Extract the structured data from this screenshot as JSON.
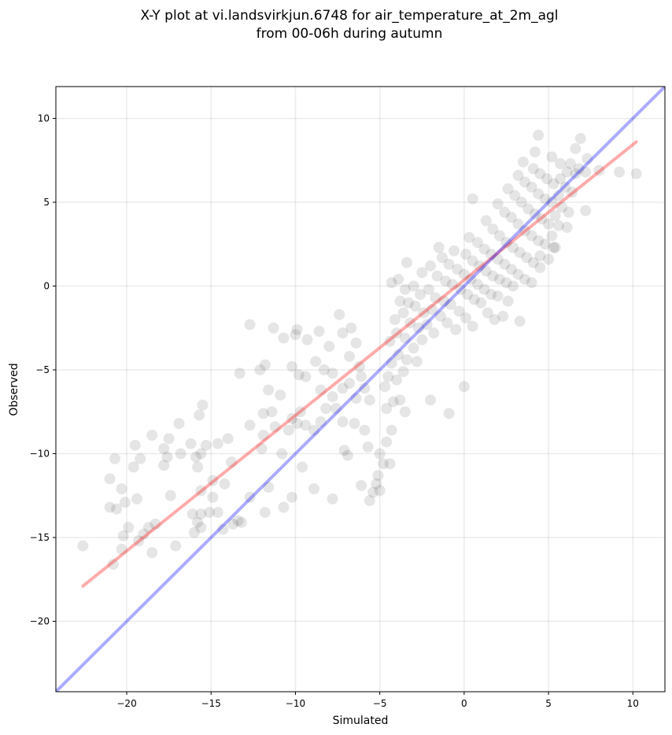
{
  "chart_data": {
    "type": "scatter",
    "title": "X-Y plot at vi.landsvirkjun.6748 for air_temperature_at_2m_agl",
    "subtitle": "from 00-06h during autumn",
    "xlabel": "Simulated",
    "ylabel": "Observed",
    "xlim": [
      -24.2,
      11.9
    ],
    "ylim": [
      -24.2,
      11.9
    ],
    "xticks": [
      -20,
      -15,
      -10,
      -5,
      0,
      5,
      10
    ],
    "yticks": [
      -20,
      -15,
      -10,
      -5,
      0,
      5,
      10
    ],
    "xtick_labels": [
      "−20",
      "−15",
      "−10",
      "−5",
      "0",
      "5",
      "10"
    ],
    "ytick_labels": [
      "−20",
      "−15",
      "−10",
      "−5",
      "0",
      "5",
      "10"
    ],
    "grid": true,
    "point_color": "#000000",
    "point_opacity": 0.1,
    "series": [
      {
        "points_note": "",
        "points": [
          [
            -22.6,
            -15.5
          ],
          [
            -21.0,
            -11.5
          ],
          [
            -20.7,
            -10.3
          ],
          [
            -20.3,
            -12.1
          ],
          [
            -21.0,
            -13.2
          ],
          [
            -20.6,
            -13.3
          ],
          [
            -20.1,
            -12.9
          ],
          [
            -19.5,
            -9.5
          ],
          [
            -19.2,
            -10.3
          ],
          [
            -19.6,
            -10.8
          ],
          [
            -19.4,
            -12.7
          ],
          [
            -20.2,
            -14.9
          ],
          [
            -19.9,
            -14.4
          ],
          [
            -19.0,
            -14.8
          ],
          [
            -18.7,
            -14.4
          ],
          [
            -18.3,
            -14.2
          ],
          [
            -18.5,
            -15.9
          ],
          [
            -20.3,
            -15.7
          ],
          [
            -20.8,
            -16.6
          ],
          [
            -19.3,
            -15.2
          ],
          [
            -18.5,
            -8.9
          ],
          [
            -17.8,
            -9.7
          ],
          [
            -17.6,
            -10.2
          ],
          [
            -17.8,
            -10.7
          ],
          [
            -17.5,
            -9.1
          ],
          [
            -16.9,
            -8.2
          ],
          [
            -16.8,
            -10.0
          ],
          [
            -17.4,
            -12.5
          ],
          [
            -17.1,
            -15.5
          ],
          [
            -16.2,
            -9.4
          ],
          [
            -15.9,
            -10.2
          ],
          [
            -15.6,
            -10.0
          ],
          [
            -15.3,
            -9.5
          ],
          [
            -15.8,
            -10.8
          ],
          [
            -15.5,
            -7.1
          ],
          [
            -15.7,
            -7.7
          ],
          [
            -14.6,
            -9.4
          ],
          [
            -14.0,
            -9.1
          ],
          [
            -13.8,
            -10.5
          ],
          [
            -14.9,
            -11.6
          ],
          [
            -14.2,
            -11.8
          ],
          [
            -15.6,
            -12.2
          ],
          [
            -14.9,
            -12.6
          ],
          [
            -16.1,
            -13.6
          ],
          [
            -15.6,
            -13.6
          ],
          [
            -15.1,
            -13.5
          ],
          [
            -14.6,
            -13.5
          ],
          [
            -15.8,
            -14.1
          ],
          [
            -15.6,
            -14.4
          ],
          [
            -16.0,
            -14.7
          ],
          [
            -13.7,
            -14.2
          ],
          [
            -13.4,
            -14.0
          ],
          [
            -14.3,
            -14.5
          ],
          [
            -12.7,
            -2.3
          ],
          [
            -13.3,
            -5.2
          ],
          [
            -12.1,
            -5.0
          ],
          [
            -11.8,
            -4.7
          ],
          [
            -11.6,
            -6.2
          ],
          [
            -11.9,
            -7.6
          ],
          [
            -11.4,
            -7.5
          ],
          [
            -12.7,
            -8.3
          ],
          [
            -11.9,
            -8.9
          ],
          [
            -11.2,
            -8.4
          ],
          [
            -12.0,
            -9.7
          ],
          [
            -10.8,
            -10.0
          ],
          [
            -12.7,
            -12.6
          ],
          [
            -11.6,
            -12.0
          ],
          [
            -11.8,
            -13.5
          ],
          [
            -13.2,
            -14.1
          ],
          [
            -11.3,
            -2.5
          ],
          [
            -10.7,
            -3.1
          ],
          [
            -10.0,
            -2.9
          ],
          [
            -9.9,
            -2.6
          ],
          [
            -10.2,
            -4.8
          ],
          [
            -9.8,
            -5.3
          ],
          [
            -9.4,
            -5.4
          ],
          [
            -10.9,
            -6.5
          ],
          [
            -10.2,
            -7.9
          ],
          [
            -9.7,
            -7.5
          ],
          [
            -9.9,
            -8.2
          ],
          [
            -10.4,
            -8.6
          ],
          [
            -9.4,
            -8.3
          ],
          [
            -8.9,
            -8.6
          ],
          [
            -9.6,
            -10.8
          ],
          [
            -10.2,
            -12.6
          ],
          [
            -10.7,
            -13.2
          ],
          [
            -8.9,
            -12.1
          ],
          [
            -7.8,
            -12.7
          ],
          [
            -9.3,
            -3.2
          ],
          [
            -8.6,
            -2.7
          ],
          [
            -8.0,
            -3.6
          ],
          [
            -8.8,
            -4.5
          ],
          [
            -8.3,
            -5.0
          ],
          [
            -7.8,
            -5.2
          ],
          [
            -8.5,
            -6.2
          ],
          [
            -7.8,
            -6.6
          ],
          [
            -7.2,
            -6.1
          ],
          [
            -8.2,
            -7.3
          ],
          [
            -7.6,
            -7.3
          ],
          [
            -8.5,
            -8.1
          ],
          [
            -7.2,
            -8.1
          ],
          [
            -7.1,
            -9.8
          ],
          [
            -6.9,
            -10.1
          ],
          [
            -7.4,
            -1.7
          ],
          [
            -7.2,
            -2.8
          ],
          [
            -6.7,
            -2.5
          ],
          [
            -6.4,
            -3.4
          ],
          [
            -6.8,
            -4.2
          ],
          [
            -6.2,
            -4.8
          ],
          [
            -6.8,
            -5.8
          ],
          [
            -6.1,
            -5.4
          ],
          [
            -5.9,
            -6.1
          ],
          [
            -6.4,
            -6.7
          ],
          [
            -5.6,
            -6.8
          ],
          [
            -6.5,
            -8.2
          ],
          [
            -5.9,
            -8.6
          ],
          [
            -5.7,
            -9.6
          ],
          [
            -6.1,
            -11.9
          ],
          [
            -5.6,
            -12.8
          ],
          [
            -5.4,
            -12.3
          ],
          [
            -5.2,
            -11.8
          ],
          [
            -5.1,
            -11.3
          ],
          [
            -5.0,
            -12.2
          ],
          [
            -4.8,
            -10.6
          ],
          [
            -5.0,
            -10.0
          ],
          [
            -4.4,
            -10.6
          ],
          [
            -4.6,
            -9.3
          ],
          [
            -4.3,
            -8.6
          ],
          [
            -4.6,
            -7.3
          ],
          [
            -3.5,
            -7.5
          ],
          [
            -3.8,
            -6.8
          ],
          [
            -4.2,
            -6.9
          ],
          [
            -2.0,
            -6.8
          ],
          [
            -0.9,
            -7.6
          ],
          [
            0.0,
            -6.0
          ],
          [
            -4.7,
            -6.0
          ],
          [
            -4.5,
            -5.4
          ],
          [
            -4.0,
            -5.6
          ],
          [
            -3.6,
            -5.1
          ],
          [
            -4.3,
            -4.6
          ],
          [
            -3.9,
            -4.1
          ],
          [
            -3.4,
            -4.4
          ],
          [
            -2.8,
            -4.5
          ],
          [
            -4.4,
            -3.3
          ],
          [
            -4.0,
            -2.8
          ],
          [
            -3.5,
            -3.1
          ],
          [
            -3.0,
            -3.7
          ],
          [
            -2.5,
            -3.2
          ],
          [
            -4.1,
            -2.0
          ],
          [
            -3.6,
            -1.6
          ],
          [
            -3.2,
            -2.2
          ],
          [
            -2.7,
            -2.5
          ],
          [
            -2.2,
            -2.3
          ],
          [
            -1.8,
            -2.8
          ],
          [
            -3.8,
            -0.9
          ],
          [
            -3.3,
            -1.0
          ],
          [
            -2.9,
            -1.2
          ],
          [
            -2.4,
            -1.6
          ],
          [
            -1.9,
            -1.4
          ],
          [
            -1.4,
            -1.8
          ],
          [
            -1.0,
            -2.2
          ],
          [
            -0.5,
            -2.6
          ],
          [
            -4.3,
            0.2
          ],
          [
            -3.9,
            0.4
          ],
          [
            -3.5,
            -0.2
          ],
          [
            -3.0,
            0.0
          ],
          [
            -2.6,
            -0.5
          ],
          [
            -2.1,
            -0.2
          ],
          [
            -1.7,
            -0.7
          ],
          [
            -1.2,
            -0.9
          ],
          [
            -0.8,
            -1.1
          ],
          [
            -0.3,
            -1.5
          ],
          [
            0.1,
            -1.9
          ],
          [
            0.5,
            -2.4
          ],
          [
            -2.5,
            0.8
          ],
          [
            -2.0,
            1.2
          ],
          [
            -1.6,
            0.6
          ],
          [
            -1.1,
            0.3
          ],
          [
            -0.7,
            0.1
          ],
          [
            -0.2,
            -0.2
          ],
          [
            0.2,
            -0.5
          ],
          [
            0.6,
            -0.8
          ],
          [
            1.0,
            -1.0
          ],
          [
            1.4,
            -1.6
          ],
          [
            1.8,
            -2.0
          ],
          [
            2.3,
            -1.8
          ],
          [
            3.3,
            -2.1
          ],
          [
            -1.3,
            1.7
          ],
          [
            -0.9,
            1.3
          ],
          [
            -0.4,
            1.0
          ],
          [
            0.0,
            0.7
          ],
          [
            0.4,
            0.4
          ],
          [
            0.8,
            0.1
          ],
          [
            1.2,
            -0.2
          ],
          [
            1.6,
            -0.5
          ],
          [
            2.0,
            -0.6
          ],
          [
            2.6,
            -0.9
          ],
          [
            -3.4,
            1.4
          ],
          [
            -1.5,
            2.3
          ],
          [
            -0.6,
            2.1
          ],
          [
            0.1,
            1.9
          ],
          [
            0.5,
            1.5
          ],
          [
            0.9,
            1.2
          ],
          [
            1.3,
            0.9
          ],
          [
            1.7,
            0.6
          ],
          [
            2.1,
            0.4
          ],
          [
            2.5,
            0.2
          ],
          [
            2.9,
            0.0
          ],
          [
            0.3,
            2.9
          ],
          [
            0.8,
            2.6
          ],
          [
            1.2,
            2.2
          ],
          [
            1.6,
            1.9
          ],
          [
            2.0,
            1.6
          ],
          [
            2.4,
            1.3
          ],
          [
            2.8,
            1.0
          ],
          [
            3.2,
            0.7
          ],
          [
            3.6,
            0.4
          ],
          [
            4.0,
            0.2
          ],
          [
            0.5,
            5.2
          ],
          [
            1.3,
            3.9
          ],
          [
            1.7,
            3.4
          ],
          [
            2.1,
            3.0
          ],
          [
            2.5,
            2.6
          ],
          [
            2.9,
            2.3
          ],
          [
            3.3,
            2.0
          ],
          [
            3.7,
            1.7
          ],
          [
            4.1,
            1.4
          ],
          [
            4.5,
            1.1
          ],
          [
            5.0,
            1.6
          ],
          [
            5.4,
            2.3
          ],
          [
            2.0,
            4.9
          ],
          [
            2.4,
            4.4
          ],
          [
            2.8,
            4.1
          ],
          [
            3.2,
            3.7
          ],
          [
            3.6,
            3.3
          ],
          [
            4.0,
            3.0
          ],
          [
            4.4,
            2.7
          ],
          [
            4.8,
            2.5
          ],
          [
            5.2,
            3.0
          ],
          [
            5.6,
            3.6
          ],
          [
            2.6,
            5.8
          ],
          [
            3.0,
            5.4
          ],
          [
            3.4,
            5.0
          ],
          [
            3.8,
            4.6
          ],
          [
            4.2,
            4.3
          ],
          [
            4.6,
            4.0
          ],
          [
            5.0,
            3.7
          ],
          [
            5.4,
            4.2
          ],
          [
            5.8,
            4.7
          ],
          [
            6.2,
            4.4
          ],
          [
            3.2,
            6.6
          ],
          [
            3.6,
            6.2
          ],
          [
            4.0,
            5.9
          ],
          [
            4.4,
            5.5
          ],
          [
            4.8,
            5.2
          ],
          [
            5.2,
            5.0
          ],
          [
            5.6,
            5.4
          ],
          [
            6.0,
            5.9
          ],
          [
            6.4,
            5.6
          ],
          [
            3.5,
            7.4
          ],
          [
            4.1,
            7.0
          ],
          [
            4.5,
            6.7
          ],
          [
            4.9,
            6.4
          ],
          [
            5.3,
            6.1
          ],
          [
            5.7,
            6.4
          ],
          [
            6.1,
            6.8
          ],
          [
            6.6,
            6.7
          ],
          [
            4.4,
            9.0
          ],
          [
            4.2,
            8.0
          ],
          [
            5.2,
            7.7
          ],
          [
            5.7,
            7.3
          ],
          [
            6.3,
            7.3
          ],
          [
            6.8,
            7.0
          ],
          [
            7.2,
            6.8
          ],
          [
            6.6,
            8.2
          ],
          [
            6.9,
            8.8
          ],
          [
            7.3,
            7.6
          ],
          [
            8.0,
            6.9
          ],
          [
            9.2,
            6.8
          ],
          [
            10.2,
            6.7
          ],
          [
            7.2,
            4.5
          ],
          [
            6.1,
            3.5
          ],
          [
            4.5,
            1.8
          ],
          [
            5.3,
            2.3
          ]
        ]
      }
    ],
    "lines": [
      {
        "name": "",
        "color": "#ff0000",
        "x": [
          -22.6,
          10.2
        ],
        "y": [
          -17.9,
          8.6
        ]
      },
      {
        "name": "",
        "color": "#0000ff",
        "x": [
          -24.2,
          11.9
        ],
        "y": [
          -24.2,
          11.9
        ]
      }
    ]
  }
}
